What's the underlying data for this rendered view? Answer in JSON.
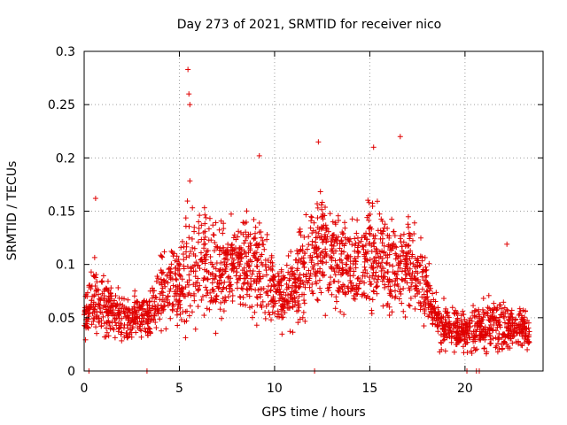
{
  "chart_data": {
    "type": "scatter",
    "title": "Day 273 of 2021, SRMTID for receiver nico",
    "xlabel": "GPS time / hours",
    "ylabel": "SRMTID / TECUs",
    "xlim": [
      0,
      24.1
    ],
    "ylim": [
      0,
      0.3
    ],
    "xticks": [
      "0",
      "5",
      "10",
      "15",
      "20"
    ],
    "xtick_values": [
      0,
      5,
      10,
      15,
      20
    ],
    "yticks": [
      "0",
      "0.05",
      "0.1",
      "0.15",
      "0.2",
      "0.25",
      "0.3"
    ],
    "ytick_values": [
      0,
      0.05,
      0.1,
      0.15,
      0.2,
      0.25,
      0.3
    ],
    "grid": true,
    "marker": "+",
    "color": "#e00000",
    "series": [
      {
        "name": "SRMTID",
        "envelope_hours": [
          0,
          0.5,
          1,
          1.5,
          2,
          2.5,
          3,
          3.5,
          4,
          4.5,
          5,
          5.5,
          6,
          6.5,
          7,
          7.5,
          8,
          8.5,
          9,
          9.5,
          10,
          10.5,
          11,
          11.5,
          12,
          12.5,
          13,
          13.5,
          14,
          14.5,
          15,
          15.5,
          16,
          16.5,
          17,
          17.5,
          18,
          18.5,
          19,
          19.5,
          20,
          20.5,
          21,
          21.5,
          22,
          22.5,
          23,
          23.4
        ],
        "envelope_center": [
          0.05,
          0.07,
          0.06,
          0.055,
          0.05,
          0.05,
          0.05,
          0.05,
          0.075,
          0.08,
          0.08,
          0.1,
          0.11,
          0.1,
          0.1,
          0.095,
          0.1,
          0.1,
          0.1,
          0.09,
          0.075,
          0.07,
          0.08,
          0.09,
          0.11,
          0.12,
          0.1,
          0.1,
          0.095,
          0.09,
          0.11,
          0.11,
          0.1,
          0.1,
          0.1,
          0.095,
          0.075,
          0.05,
          0.04,
          0.04,
          0.035,
          0.04,
          0.04,
          0.045,
          0.045,
          0.04,
          0.04,
          0.04
        ],
        "envelope_spread": [
          0.02,
          0.03,
          0.025,
          0.02,
          0.02,
          0.02,
          0.02,
          0.02,
          0.03,
          0.035,
          0.035,
          0.06,
          0.06,
          0.05,
          0.045,
          0.04,
          0.04,
          0.04,
          0.045,
          0.035,
          0.03,
          0.03,
          0.03,
          0.04,
          0.05,
          0.05,
          0.04,
          0.04,
          0.035,
          0.04,
          0.05,
          0.05,
          0.04,
          0.04,
          0.04,
          0.04,
          0.03,
          0.02,
          0.02,
          0.02,
          0.015,
          0.02,
          0.02,
          0.025,
          0.03,
          0.02,
          0.02,
          0.02
        ],
        "peaks": [
          {
            "x": 5.45,
            "y": 0.283
          },
          {
            "x": 5.5,
            "y": 0.26
          },
          {
            "x": 5.55,
            "y": 0.25
          },
          {
            "x": 12.3,
            "y": 0.215
          },
          {
            "x": 16.6,
            "y": 0.22
          },
          {
            "x": 15.2,
            "y": 0.21
          },
          {
            "x": 9.2,
            "y": 0.202
          },
          {
            "x": 22.2,
            "y": 0.119
          },
          {
            "x": 0.6,
            "y": 0.162
          }
        ],
        "zero_markers": [
          0.25,
          3.3,
          12.1,
          20.1,
          20.6,
          20.75
        ]
      }
    ]
  }
}
